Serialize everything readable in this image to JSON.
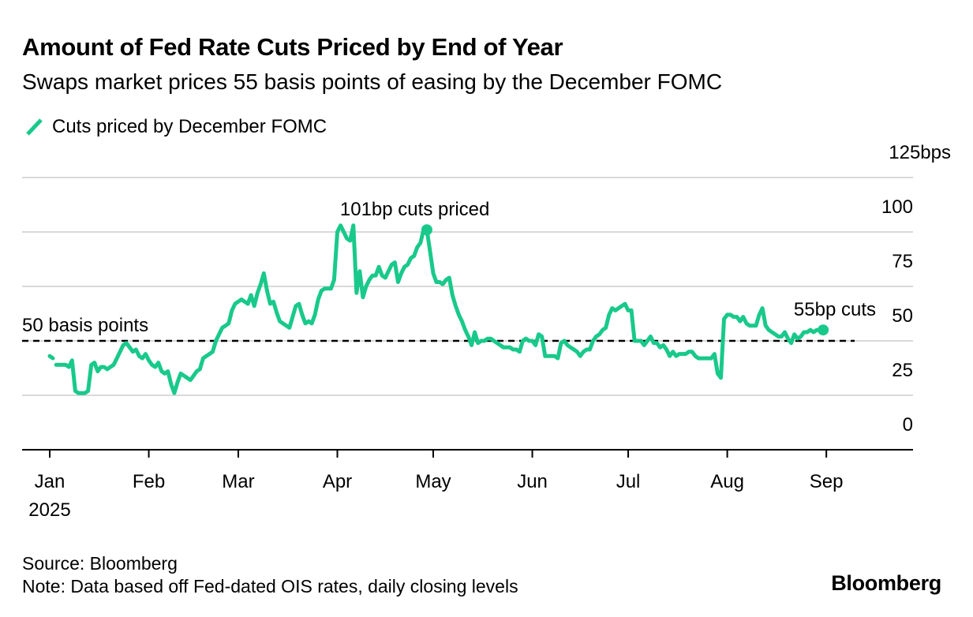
{
  "header": {
    "title": "Amount of Fed Rate Cuts Priced by End of Year",
    "subtitle": "Swaps market prices 55 basis points of easing by the December FOMC"
  },
  "footer": {
    "source": "Source: Bloomberg",
    "note": "Note: Data based off Fed-dated OIS rates, daily closing levels",
    "logo": "Bloomberg"
  },
  "colors": {
    "series": "#19c98b",
    "grid": "#d9d9d9",
    "axis": "#000000",
    "reference": "#000000"
  },
  "chart_data": {
    "type": "line",
    "title": "Amount of Fed Rate Cuts Priced by End of Year",
    "subtitle": "Swaps market prices 55 basis points of easing by the December FOMC",
    "xlabel": "",
    "ylabel": "bps",
    "x_unit": "day of year 2025 (Jan 1 = 0)",
    "xlim": [
      0,
      271
    ],
    "ylim": [
      0,
      125
    ],
    "grid": true,
    "y_axis_side": "right",
    "legend": {
      "placement": "top-left",
      "entries": [
        "Cuts priced by December FOMC"
      ]
    },
    "x_ticks": [
      {
        "day": 0,
        "label": "Jan",
        "sublabel": "2025"
      },
      {
        "day": 31,
        "label": "Feb"
      },
      {
        "day": 59,
        "label": "Mar"
      },
      {
        "day": 90,
        "label": "Apr"
      },
      {
        "day": 120,
        "label": "May"
      },
      {
        "day": 151,
        "label": "Jun"
      },
      {
        "day": 181,
        "label": "Jul"
      },
      {
        "day": 212,
        "label": "Aug"
      },
      {
        "day": 243,
        "label": "Sep"
      }
    ],
    "y_ticks": [
      {
        "value": 0,
        "label": "0"
      },
      {
        "value": 25,
        "label": "25"
      },
      {
        "value": 50,
        "label": "50"
      },
      {
        "value": 75,
        "label": "75"
      },
      {
        "value": 100,
        "label": "100"
      },
      {
        "value": 125,
        "label": "125bps"
      }
    ],
    "reference_line": {
      "value": 50,
      "label": "50 basis points",
      "style": "dashed"
    },
    "annotations": [
      {
        "label": "101bp cuts priced",
        "day": 118,
        "value": 101,
        "marker": true
      },
      {
        "label": "55bp cuts",
        "day": 242,
        "value": 55,
        "marker": true
      }
    ],
    "series": [
      {
        "name": "Cuts priced by December FOMC",
        "segments": [
          [
            [
              0,
              43
            ],
            [
              1,
              42
            ]
          ],
          [
            [
              2,
              39
            ],
            [
              3,
              39
            ],
            [
              4,
              39
            ],
            [
              5,
              39
            ],
            [
              6,
              38
            ],
            [
              7,
              41
            ],
            [
              8,
              27
            ],
            [
              9,
              26
            ],
            [
              10,
              26
            ],
            [
              11,
              26
            ],
            [
              12,
              27
            ],
            [
              13,
              39
            ],
            [
              14,
              40
            ],
            [
              15,
              36
            ],
            [
              16,
              38
            ],
            [
              17,
              38
            ],
            [
              18,
              37
            ],
            [
              19,
              38
            ],
            [
              20,
              39
            ],
            [
              21,
              42
            ],
            [
              22,
              45
            ],
            [
              23,
              48
            ],
            [
              24,
              49
            ],
            [
              25,
              47
            ],
            [
              26,
              45
            ],
            [
              27,
              46
            ],
            [
              28,
              43
            ],
            [
              29,
              42
            ],
            [
              30,
              44
            ],
            [
              31,
              41
            ],
            [
              32,
              39
            ],
            [
              33,
              38
            ],
            [
              34,
              40
            ],
            [
              35,
              36
            ],
            [
              36,
              35
            ],
            [
              37,
              36
            ],
            [
              38,
              30
            ],
            [
              39,
              26
            ],
            [
              40,
              31
            ],
            [
              41,
              35
            ],
            [
              42,
              34
            ],
            [
              43,
              33
            ],
            [
              44,
              32
            ],
            [
              45,
              34
            ],
            [
              46,
              36
            ],
            [
              47,
              37
            ],
            [
              48,
              42
            ],
            [
              49,
              43
            ],
            [
              50,
              44
            ],
            [
              51,
              45
            ],
            [
              52,
              50
            ],
            [
              53,
              53
            ],
            [
              54,
              56
            ],
            [
              55,
              57
            ],
            [
              56,
              58
            ],
            [
              57,
              64
            ],
            [
              58,
              67
            ],
            [
              59,
              68
            ],
            [
              60,
              69
            ],
            [
              61,
              68
            ],
            [
              62,
              67
            ],
            [
              63,
              71
            ],
            [
              64,
              66
            ],
            [
              65,
              72
            ],
            [
              66,
              76
            ],
            [
              67,
              81
            ],
            [
              68,
              73
            ],
            [
              69,
              67
            ],
            [
              70,
              68
            ],
            [
              71,
              63
            ],
            [
              72,
              59
            ],
            [
              73,
              58
            ],
            [
              74,
              57
            ],
            [
              75,
              56
            ],
            [
              76,
              61
            ],
            [
              77,
              66
            ],
            [
              78,
              67
            ],
            [
              79,
              62
            ],
            [
              80,
              58
            ],
            [
              81,
              59
            ],
            [
              82,
              58
            ],
            [
              83,
              62
            ],
            [
              84,
              69
            ],
            [
              85,
              73
            ],
            [
              86,
              74
            ],
            [
              87,
              74
            ],
            [
              88,
              74
            ],
            [
              89,
              78
            ],
            [
              90,
              100
            ],
            [
              91,
              103
            ],
            [
              92,
              100
            ],
            [
              93,
              97
            ],
            [
              94,
              96
            ],
            [
              95,
              103
            ],
            [
              96,
              72
            ],
            [
              97,
              82
            ],
            [
              98,
              70
            ],
            [
              99,
              75
            ],
            [
              100,
              78
            ],
            [
              101,
              80
            ],
            [
              102,
              80
            ],
            [
              103,
              84
            ],
            [
              104,
              80
            ],
            [
              105,
              79
            ],
            [
              106,
              82
            ],
            [
              107,
              85
            ],
            [
              108,
              86
            ],
            [
              109,
              77
            ],
            [
              110,
              81
            ],
            [
              111,
              84
            ],
            [
              112,
              85
            ],
            [
              113,
              88
            ],
            [
              114,
              89
            ],
            [
              115,
              93
            ],
            [
              116,
              95
            ],
            [
              117,
              101
            ],
            [
              118,
              101
            ],
            [
              119,
              91
            ],
            [
              120,
              81
            ],
            [
              121,
              77
            ],
            [
              122,
              77
            ],
            [
              123,
              76
            ],
            [
              124,
              78
            ],
            [
              125,
              79
            ],
            [
              126,
              71
            ],
            [
              127,
              66
            ],
            [
              128,
              62
            ],
            [
              129,
              59
            ],
            [
              130,
              55
            ],
            [
              131,
              52
            ],
            [
              132,
              48
            ],
            [
              133,
              54
            ],
            [
              134,
              49
            ],
            [
              135,
              50
            ],
            [
              136,
              50
            ],
            [
              137,
              51
            ],
            [
              138,
              51
            ],
            [
              139,
              50
            ],
            [
              140,
              49
            ],
            [
              141,
              48
            ],
            [
              142,
              47
            ],
            [
              143,
              47
            ],
            [
              144,
              47
            ],
            [
              145,
              46
            ],
            [
              146,
              46
            ],
            [
              147,
              45
            ],
            [
              148,
              50
            ],
            [
              149,
              51
            ],
            [
              150,
              50
            ],
            [
              151,
              50
            ],
            [
              152,
              48
            ],
            [
              153,
              53
            ],
            [
              154,
              52
            ],
            [
              155,
              43
            ],
            [
              156,
              43
            ],
            [
              157,
              43
            ],
            [
              158,
              43
            ],
            [
              159,
              42
            ],
            [
              160,
              49
            ],
            [
              161,
              50
            ],
            [
              162,
              48
            ],
            [
              163,
              47
            ],
            [
              164,
              46
            ],
            [
              165,
              45
            ],
            [
              166,
              43
            ],
            [
              167,
              45
            ],
            [
              168,
              46
            ],
            [
              169,
              46
            ],
            [
              170,
              50
            ],
            [
              171,
              52
            ],
            [
              172,
              53
            ],
            [
              173,
              55
            ],
            [
              174,
              56
            ],
            [
              175,
              62
            ],
            [
              176,
              65
            ],
            [
              177,
              64
            ],
            [
              178,
              65
            ],
            [
              179,
              66
            ],
            [
              180,
              67
            ],
            [
              181,
              64
            ],
            [
              182,
              64
            ],
            [
              183,
              50
            ],
            [
              184,
              50
            ],
            [
              185,
              50
            ],
            [
              186,
              48
            ],
            [
              187,
              50
            ],
            [
              188,
              52
            ],
            [
              189,
              49
            ],
            [
              190,
              49
            ],
            [
              191,
              47
            ],
            [
              192,
              48
            ],
            [
              193,
              46
            ],
            [
              194,
              43
            ],
            [
              195,
              45
            ],
            [
              196,
              43
            ],
            [
              197,
              44
            ],
            [
              198,
              44
            ],
            [
              199,
              44
            ],
            [
              200,
              45
            ],
            [
              201,
              45
            ],
            [
              202,
              43
            ],
            [
              203,
              42
            ],
            [
              204,
              42
            ],
            [
              205,
              42
            ],
            [
              206,
              42
            ],
            [
              207,
              42
            ],
            [
              208,
              44
            ],
            [
              209,
              35
            ],
            [
              210,
              33
            ],
            [
              211,
              60
            ],
            [
              212,
              62
            ],
            [
              213,
              62
            ],
            [
              214,
              61
            ],
            [
              215,
              61
            ],
            [
              216,
              59
            ],
            [
              217,
              61
            ],
            [
              218,
              58
            ],
            [
              219,
              57
            ],
            [
              220,
              57
            ],
            [
              221,
              57
            ],
            [
              222,
              62
            ],
            [
              223,
              65
            ],
            [
              224,
              57
            ],
            [
              225,
              55
            ],
            [
              226,
              54
            ],
            [
              227,
              53
            ],
            [
              228,
              52
            ],
            [
              229,
              52
            ],
            [
              230,
              54
            ],
            [
              231,
              51
            ],
            [
              232,
              49
            ],
            [
              233,
              53
            ],
            [
              234,
              51
            ],
            [
              235,
              52
            ],
            [
              236,
              54
            ],
            [
              237,
              54
            ],
            [
              238,
              55
            ],
            [
              239,
              54
            ],
            [
              240,
              55
            ],
            [
              241,
              55
            ],
            [
              242,
              55
            ]
          ]
        ]
      }
    ]
  }
}
